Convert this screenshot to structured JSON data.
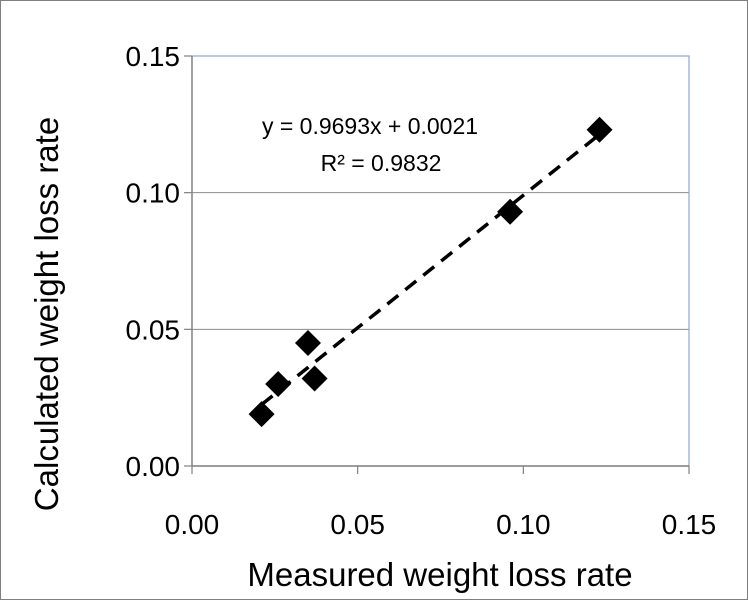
{
  "chart_data": {
    "type": "scatter",
    "title": "",
    "xlabel": "Measured weight loss rate",
    "ylabel": "Calculated weight loss rate",
    "xlim": [
      0,
      0.15
    ],
    "ylim": [
      0,
      0.15
    ],
    "x_ticks": [
      "0.00",
      "0.05",
      "0.10",
      "0.15"
    ],
    "y_ticks": [
      "0.00",
      "0.05",
      "0.10",
      "0.15"
    ],
    "grid": "horizontal",
    "legend": "none",
    "marker_color": "#000000",
    "points": [
      {
        "x": 0.021,
        "y": 0.019
      },
      {
        "x": 0.026,
        "y": 0.03
      },
      {
        "x": 0.035,
        "y": 0.045
      },
      {
        "x": 0.037,
        "y": 0.032
      },
      {
        "x": 0.096,
        "y": 0.093
      },
      {
        "x": 0.123,
        "y": 0.123
      }
    ],
    "trendline": {
      "slope": 0.9693,
      "intercept": 0.0021,
      "style": "dashed",
      "equation": "y = 0.9693x + 0.0021",
      "r_squared": "R² = 0.9832"
    }
  }
}
